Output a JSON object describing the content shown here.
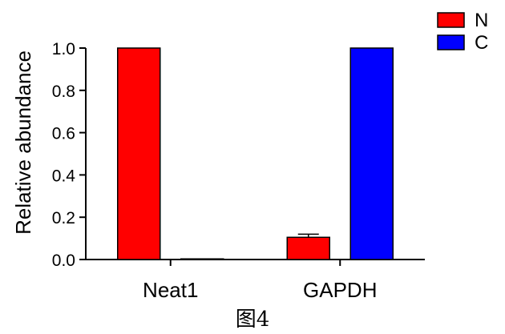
{
  "chart_data": {
    "type": "bar",
    "categories": [
      "Neat1",
      "GAPDH"
    ],
    "series": [
      {
        "name": "N",
        "color": "#ff0000",
        "values": [
          1.0,
          0.105
        ],
        "errors": [
          0,
          0.015
        ]
      },
      {
        "name": "C",
        "color": "#0000ff",
        "values": [
          0.003,
          1.0
        ],
        "errors": [
          0,
          0
        ]
      }
    ],
    "ylabel": "Relative abundance",
    "xlabel": "",
    "ylim": [
      0,
      1.0
    ],
    "yticks": [
      "0.0",
      "0.2",
      "0.4",
      "0.6",
      "0.8",
      "1.0"
    ],
    "legend_position": "top-right",
    "grid": false
  },
  "caption": "图4"
}
